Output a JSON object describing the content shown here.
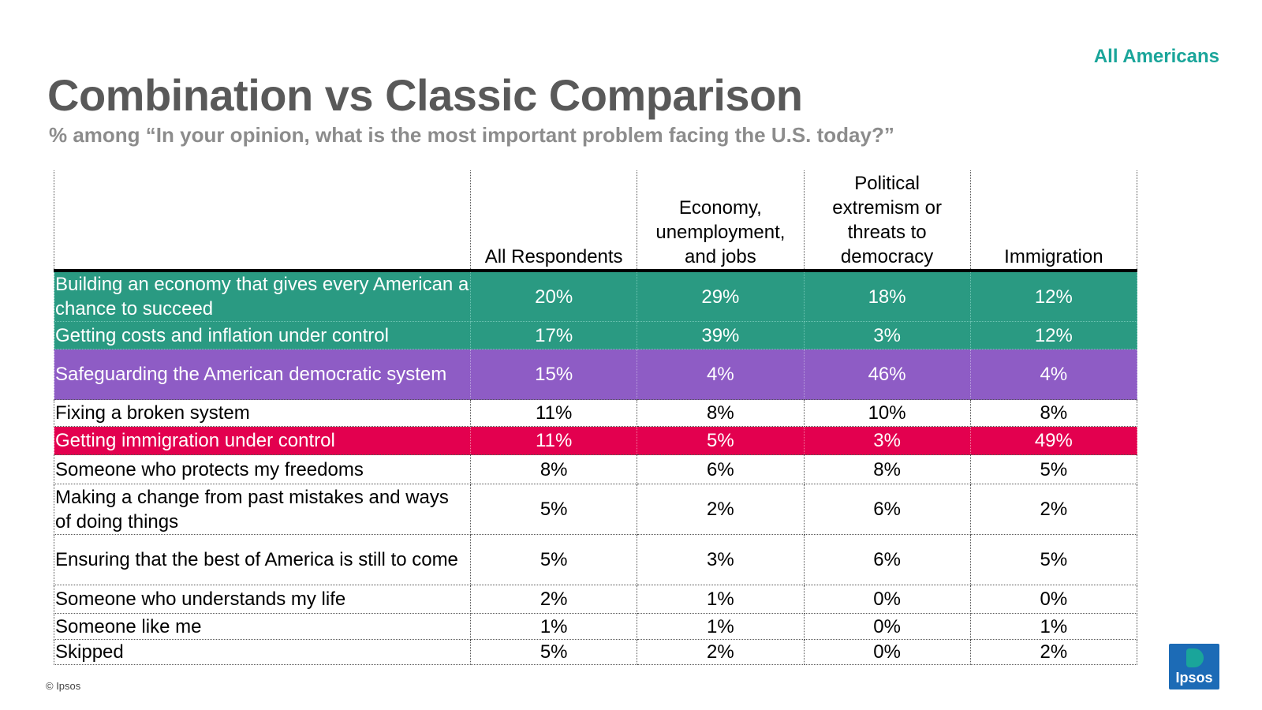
{
  "header": {
    "tag": "All Americans",
    "title": "Combination vs Classic Comparison",
    "subtitle": "% among “In your opinion, what is the most important problem facing the U.S. today?”"
  },
  "table": {
    "columns": [
      "",
      "All Respondents",
      "Economy, unemployment, and jobs",
      "Political extremism or threats to democracy",
      "Immigration"
    ],
    "rows": [
      {
        "label": "Building an economy that gives every American a chance to succeed",
        "values": [
          "20%",
          "29%",
          "18%",
          "12%"
        ],
        "highlight": "#2a9a82"
      },
      {
        "label": "Getting costs and inflation under control",
        "values": [
          "17%",
          "39%",
          "3%",
          "12%"
        ],
        "highlight": "#2a9a82"
      },
      {
        "label": "Safeguarding the American democratic system",
        "values": [
          "15%",
          "4%",
          "46%",
          "4%"
        ],
        "highlight": "#8e5cc5"
      },
      {
        "label": "Fixing a broken system",
        "values": [
          "11%",
          "8%",
          "10%",
          "8%"
        ],
        "highlight": ""
      },
      {
        "label": "Getting immigration under control",
        "values": [
          "11%",
          "5%",
          "3%",
          "49%"
        ],
        "highlight": "#e3004f"
      },
      {
        "label": "Someone who protects my freedoms",
        "values": [
          "8%",
          "6%",
          "8%",
          "5%"
        ],
        "highlight": ""
      },
      {
        "label": "Making a change from past mistakes and ways of doing things",
        "values": [
          "5%",
          "2%",
          "6%",
          "2%"
        ],
        "highlight": ""
      },
      {
        "label": "Ensuring that the best of America is still to come",
        "values": [
          "5%",
          "3%",
          "6%",
          "5%"
        ],
        "highlight": ""
      },
      {
        "label": "Someone who understands my life",
        "values": [
          "2%",
          "1%",
          "0%",
          "0%"
        ],
        "highlight": ""
      },
      {
        "label": "Someone like me",
        "values": [
          "1%",
          "1%",
          "0%",
          "1%"
        ],
        "highlight": ""
      },
      {
        "label": "Skipped",
        "values": [
          "5%",
          "2%",
          "0%",
          "2%"
        ],
        "highlight": ""
      }
    ]
  },
  "footer": {
    "copyright": "© Ipsos",
    "logo_text": "Ipsos"
  }
}
